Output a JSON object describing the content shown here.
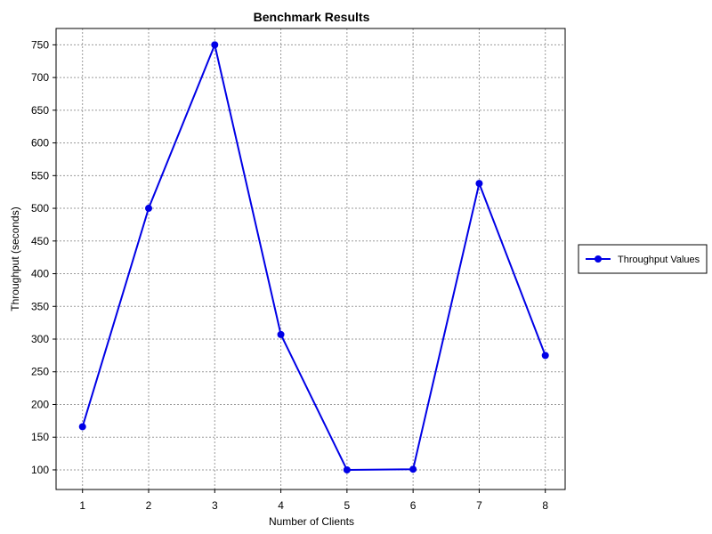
{
  "chart_data": {
    "type": "line",
    "title": "Benchmark Results",
    "xlabel": "Number of Clients",
    "ylabel": "Throughput (seconds)",
    "x": [
      1,
      2,
      3,
      4,
      5,
      6,
      7,
      8
    ],
    "series": [
      {
        "name": "Throughput Values",
        "values": [
          166,
          500,
          750,
          307,
          100,
          101,
          538,
          275
        ],
        "color": "#0000e6"
      }
    ],
    "xlim": [
      0.6,
      8.3
    ],
    "ylim": [
      70,
      775
    ],
    "xticks": [
      1,
      2,
      3,
      4,
      5,
      6,
      7,
      8
    ],
    "yticks": [
      100,
      150,
      200,
      250,
      300,
      350,
      400,
      450,
      500,
      550,
      600,
      650,
      700,
      750
    ],
    "grid": true,
    "legend_position": "right",
    "marker": "circle"
  }
}
